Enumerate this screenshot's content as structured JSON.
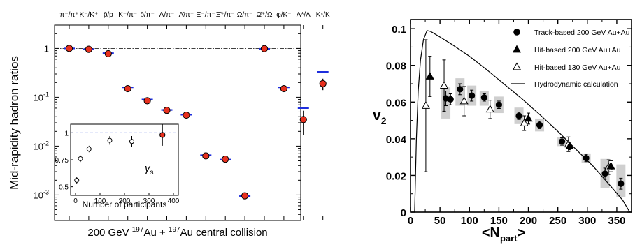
{
  "chart_data": [
    {
      "type": "scatter",
      "panel": "left",
      "ylabel": "Mid-rapidity hadron ratios",
      "xlabel_parts": [
        "200 GeV ",
        "197",
        "Au + ",
        "197",
        "Au central collision"
      ],
      "categories": [
        "π⁻/π⁺",
        "K⁻/K⁺",
        "p̄/p",
        "K⁻/π⁻",
        "p̄/π⁻",
        "Λ/π⁻",
        "Λ̄/π⁻",
        "Ξ⁻/π⁻",
        "Ξ̄⁺/π⁻",
        "Ω/π⁻",
        "Ω̄⁺/Ω",
        "φ/K⁻",
        "Λ*/Λ",
        "K*/K"
      ],
      "y_scale": "log",
      "ylim": [
        0.0003,
        3
      ],
      "yticks": [
        {
          "v": 1,
          "label": "1",
          "exp": ""
        },
        {
          "v": 0.1,
          "label": "10",
          "exp": "-1"
        },
        {
          "v": 0.01,
          "label": "10",
          "exp": "-2"
        },
        {
          "v": 0.001,
          "label": "10",
          "exp": "-3"
        }
      ],
      "reference_line": 1,
      "series": [
        {
          "kind": "data",
          "color": "#e8301e",
          "values": [
            1.0,
            0.96,
            0.78,
            0.15,
            0.085,
            0.054,
            0.043,
            0.0063,
            0.0054,
            0.00096,
            0.99,
            0.15,
            0.035,
            0.19
          ],
          "errors": [
            0.07,
            0.07,
            0.08,
            0.02,
            0.011,
            0.006,
            0.005,
            0.0009,
            0.0008,
            9e-05,
            0.07,
            0.02,
            0.018,
            0.05
          ]
        },
        {
          "kind": "model",
          "color": "#1e2edc",
          "values": [
            1.0,
            0.96,
            0.8,
            0.16,
            0.09,
            0.055,
            0.044,
            0.0065,
            0.0053,
            0.00095,
            0.98,
            0.16,
            0.06,
            0.33
          ]
        }
      ],
      "inset": {
        "xlabel": "Number of participants",
        "symbol": "γs",
        "xlim": [
          -20,
          420
        ],
        "xticks": [
          0,
          100,
          200,
          300,
          400
        ],
        "ylim": [
          0.42,
          1.08
        ],
        "yticks": [
          {
            "v": 0.5,
            "label": "0.5"
          },
          {
            "v": 0.75,
            "label": "0.75"
          },
          {
            "v": 1,
            "label": "1"
          }
        ],
        "reference_line": 1,
        "points": [
          {
            "x": 5,
            "y": 0.56,
            "err": 0.03,
            "filled": false
          },
          {
            "x": 20,
            "y": 0.76,
            "err": 0.03,
            "filled": false
          },
          {
            "x": 55,
            "y": 0.85,
            "err": 0.03,
            "filled": false
          },
          {
            "x": 140,
            "y": 0.93,
            "err": 0.04,
            "filled": false
          },
          {
            "x": 230,
            "y": 0.92,
            "err": 0.05,
            "filled": false
          },
          {
            "x": 355,
            "y": 0.98,
            "err": 0.1,
            "filled": true
          }
        ]
      }
    },
    {
      "type": "scatter",
      "panel": "right",
      "ylabel": "v",
      "ylabel_sub": "2",
      "xlabel": "<N",
      "xlabel_sub": "part",
      "xlabel_end": ">",
      "xlim": [
        0,
        375
      ],
      "ylim": [
        0,
        0.105
      ],
      "xticks": [
        0,
        50,
        100,
        150,
        200,
        250,
        300,
        350
      ],
      "yticks": [
        {
          "v": 0,
          "label": "0"
        },
        {
          "v": 0.02,
          "label": "0.02"
        },
        {
          "v": 0.04,
          "label": "0.04"
        },
        {
          "v": 0.06,
          "label": "0.06"
        },
        {
          "v": 0.08,
          "label": "0.08"
        },
        {
          "v": 0.1,
          "label": "0.1"
        }
      ],
      "series": [
        {
          "name": "Track-based 200 GeV Au+Au",
          "marker": "circle",
          "points": [
            {
              "x": 60,
              "y": 0.062,
              "err": 0.004,
              "sys": [
                0.051,
                0.068
              ]
            },
            {
              "x": 68,
              "y": 0.0615,
              "err": 0.003
            },
            {
              "x": 84,
              "y": 0.067,
              "err": 0.003,
              "sys": [
                0.058,
                0.073
              ]
            },
            {
              "x": 104,
              "y": 0.0635,
              "err": 0.003,
              "sys": [
                0.058,
                0.069
              ]
            },
            {
              "x": 125,
              "y": 0.0625,
              "err": 0.002,
              "sys": [
                0.058,
                0.066
              ]
            },
            {
              "x": 150,
              "y": 0.0585,
              "err": 0.002,
              "sys": [
                0.054,
                0.063
              ]
            },
            {
              "x": 184,
              "y": 0.0525,
              "err": 0.002,
              "sys": [
                0.048,
                0.057
              ]
            },
            {
              "x": 219,
              "y": 0.0475,
              "err": 0.002,
              "sys": [
                0.044,
                0.051
              ]
            },
            {
              "x": 257,
              "y": 0.0385,
              "err": 0.002,
              "sys": [
                0.036,
                0.041
              ]
            },
            {
              "x": 298,
              "y": 0.0295,
              "err": 0.002,
              "sys": [
                0.027,
                0.032
              ]
            },
            {
              "x": 330,
              "y": 0.021,
              "err": 0.003,
              "sys": [
                0.013,
                0.029
              ]
            },
            {
              "x": 357,
              "y": 0.0155,
              "err": 0.003,
              "sys": [
                0.008,
                0.026
              ]
            }
          ]
        },
        {
          "name": "Hit-based 200 GeV Au+Au",
          "marker": "triangle",
          "points": [
            {
              "x": 33,
              "y": 0.074,
              "err": 0.011
            },
            {
              "x": 200,
              "y": 0.051,
              "err": 0.003
            },
            {
              "x": 270,
              "y": 0.036,
              "err": 0.002
            },
            {
              "x": 340,
              "y": 0.025,
              "err": 0.003
            }
          ]
        },
        {
          "name": "Hit-based 130 GeV Au+Au",
          "marker": "triangle-open",
          "points": [
            {
              "x": 26,
              "y": 0.058,
              "err": 0.036
            },
            {
              "x": 57,
              "y": 0.069,
              "err": 0.014
            },
            {
              "x": 91,
              "y": 0.0605,
              "err": 0.008
            },
            {
              "x": 135,
              "y": 0.056,
              "err": 0.005
            },
            {
              "x": 193,
              "y": 0.0485,
              "err": 0.004
            },
            {
              "x": 268,
              "y": 0.037,
              "err": 0.004
            },
            {
              "x": 336,
              "y": 0.0245,
              "err": 0.004
            }
          ]
        },
        {
          "name": "Hydrodynamic calculation",
          "marker": "line",
          "points": [
            {
              "x": 7,
              "y": 0.0
            },
            {
              "x": 10,
              "y": 0.04
            },
            {
              "x": 13,
              "y": 0.066
            },
            {
              "x": 17,
              "y": 0.083
            },
            {
              "x": 22,
              "y": 0.094
            },
            {
              "x": 28,
              "y": 0.099
            },
            {
              "x": 34,
              "y": 0.0985
            },
            {
              "x": 42,
              "y": 0.097
            },
            {
              "x": 50,
              "y": 0.0955
            },
            {
              "x": 70,
              "y": 0.0915
            },
            {
              "x": 100,
              "y": 0.085
            },
            {
              "x": 130,
              "y": 0.0775
            },
            {
              "x": 160,
              "y": 0.0695
            },
            {
              "x": 190,
              "y": 0.0615
            },
            {
              "x": 220,
              "y": 0.053
            },
            {
              "x": 250,
              "y": 0.044
            },
            {
              "x": 280,
              "y": 0.0345
            },
            {
              "x": 310,
              "y": 0.025
            },
            {
              "x": 340,
              "y": 0.014
            },
            {
              "x": 360,
              "y": 0.0065
            },
            {
              "x": 372,
              "y": 0.0
            }
          ]
        }
      ]
    }
  ]
}
